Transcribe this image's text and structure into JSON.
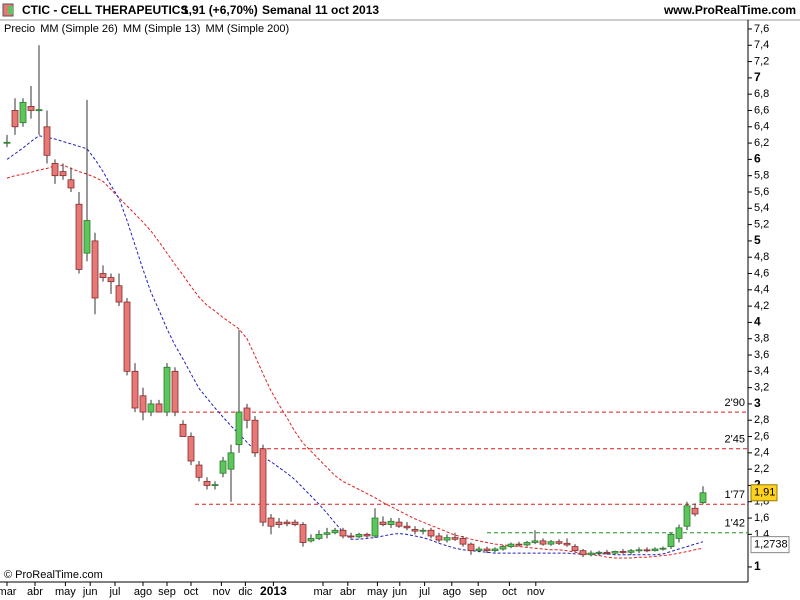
{
  "chart_data": {
    "type": "candlestick",
    "title": "CTIC - CELL THERAPEUTICS",
    "quote": "1,91 (+6,70%)",
    "period": "Semanal",
    "date": "11 oct 2013",
    "source": "www.ProRealTime.com",
    "footer": "© ProRealTime.com",
    "ylim": [
      0.84,
      7.71
    ],
    "yticks": [
      1,
      {
        "value": 1.4,
        "label": "1,4"
      },
      {
        "value": 1.6,
        "label": "1,6"
      },
      {
        "value": 1.8,
        "label": "1,8"
      },
      2,
      {
        "value": 2.2,
        "label": "2,2"
      },
      {
        "value": 2.4,
        "label": "2,4"
      },
      {
        "value": 2.6,
        "label": "2,6"
      },
      {
        "value": 2.8,
        "label": "2,8"
      },
      3,
      {
        "value": 3.2,
        "label": "3,2"
      },
      {
        "value": 3.4,
        "label": "3,4"
      },
      {
        "value": 3.6,
        "label": "3,6"
      },
      {
        "value": 3.8,
        "label": "3,8"
      },
      4,
      {
        "value": 4.2,
        "label": "4,2"
      },
      {
        "value": 4.4,
        "label": "4,4"
      },
      {
        "value": 4.6,
        "label": "4,6"
      },
      {
        "value": 4.8,
        "label": "4,8"
      },
      5,
      {
        "value": 5.2,
        "label": "5,2"
      },
      {
        "value": 5.4,
        "label": "5,4"
      },
      {
        "value": 5.6,
        "label": "5,6"
      },
      {
        "value": 5.8,
        "label": "5,8"
      },
      6,
      {
        "value": 6.2,
        "label": "6,2"
      },
      {
        "value": 6.4,
        "label": "6,4"
      },
      {
        "value": 6.6,
        "label": "6,6"
      },
      {
        "value": 6.8,
        "label": "6,8"
      },
      7,
      {
        "value": 7.2,
        "label": "7,2"
      },
      {
        "value": 7.4,
        "label": "7,4"
      },
      {
        "value": 7.6,
        "label": "7,6"
      }
    ],
    "xlim": [
      -0.875,
      92.625
    ],
    "xticks": [
      {
        "value": 0,
        "label": "mar"
      },
      {
        "value": 3.5,
        "label": "abr"
      },
      {
        "value": 7.3,
        "label": "may"
      },
      {
        "value": 10.4,
        "label": "jun"
      },
      {
        "value": 13.5,
        "label": "jul"
      },
      {
        "value": 17,
        "label": "ago"
      },
      {
        "value": 20,
        "label": "sep"
      },
      {
        "value": 23,
        "label": "oct"
      },
      {
        "value": 26.8,
        "label": "nov"
      },
      {
        "value": 29.8,
        "label": "dic"
      },
      {
        "value": 33.3,
        "label": "2013"
      },
      {
        "value": 39.5,
        "label": "mar"
      },
      {
        "value": 42.6,
        "label": "abr"
      },
      {
        "value": 46.3,
        "label": "may"
      },
      {
        "value": 49.1,
        "label": "jun"
      },
      {
        "value": 52.2,
        "label": "jul"
      },
      {
        "value": 55.6,
        "label": "ago"
      },
      {
        "value": 58.9,
        "label": "sep"
      },
      {
        "value": 62.8,
        "label": "oct"
      },
      {
        "value": 66.1,
        "label": "nov"
      }
    ],
    "series": [
      {
        "name": "Precio",
        "up_color": "#5cc65c",
        "down_color": "#e67878",
        "open": [
          6.2,
          6.6,
          6.45,
          6.65,
          6.6,
          6.4,
          5.95,
          5.85,
          5.75,
          5.45,
          4.85,
          5.0,
          4.6,
          4.55,
          4.45,
          4.25,
          3.4,
          3.1,
          2.9,
          3.0,
          2.9,
          3.4,
          2.75,
          2.6,
          2.25,
          2.05,
          2.0,
          2.15,
          2.2,
          2.5,
          2.95,
          2.8,
          2.45,
          1.6,
          1.55,
          1.55,
          1.55,
          1.52,
          1.32,
          1.35,
          1.4,
          1.42,
          1.45,
          1.38,
          1.37,
          1.4,
          1.38,
          1.55,
          1.52,
          1.55,
          1.5,
          1.46,
          1.44,
          1.45,
          1.38,
          1.33,
          1.36,
          1.35,
          1.28,
          1.2,
          1.22,
          1.2,
          1.22,
          1.25,
          1.28,
          1.27,
          1.3,
          1.32,
          1.28,
          1.31,
          1.29,
          1.25,
          1.2,
          1.15,
          1.17,
          1.18,
          1.17,
          1.19,
          1.18,
          1.2,
          1.21,
          1.2,
          1.22,
          1.25,
          1.35,
          1.5,
          1.72,
          1.79
        ],
        "high": [
          6.3,
          6.75,
          6.75,
          6.9,
          7.4,
          6.6,
          6.0,
          5.95,
          5.9,
          5.6,
          6.73,
          5.1,
          4.7,
          4.6,
          4.6,
          4.3,
          3.5,
          3.2,
          3.05,
          3.05,
          3.5,
          3.45,
          2.8,
          2.65,
          2.3,
          2.1,
          2.05,
          2.35,
          2.5,
          3.91,
          3.0,
          2.85,
          2.5,
          1.65,
          1.6,
          1.58,
          1.58,
          1.55,
          1.4,
          1.45,
          1.48,
          1.48,
          1.48,
          1.42,
          1.42,
          1.42,
          1.72,
          1.62,
          1.6,
          1.6,
          1.55,
          1.5,
          1.48,
          1.48,
          1.42,
          1.4,
          1.42,
          1.38,
          1.3,
          1.25,
          1.25,
          1.24,
          1.27,
          1.3,
          1.31,
          1.32,
          1.45,
          1.35,
          1.33,
          1.34,
          1.35,
          1.28,
          1.22,
          1.2,
          1.2,
          1.21,
          1.2,
          1.22,
          1.22,
          1.24,
          1.24,
          1.24,
          1.25,
          1.42,
          1.52,
          1.8,
          1.78,
          1.99
        ],
        "low": [
          6.15,
          6.3,
          6.4,
          6.5,
          6.3,
          5.95,
          5.7,
          5.75,
          5.6,
          4.6,
          4.75,
          4.1,
          4.5,
          4.35,
          4.2,
          3.35,
          2.9,
          2.8,
          2.85,
          2.9,
          2.85,
          2.85,
          2.6,
          2.25,
          2.05,
          1.95,
          1.95,
          2.1,
          1.8,
          2.4,
          2.7,
          2.35,
          1.5,
          1.4,
          1.48,
          1.5,
          1.5,
          1.25,
          1.3,
          1.33,
          1.35,
          1.4,
          1.35,
          1.35,
          1.35,
          1.36,
          1.36,
          1.5,
          1.48,
          1.48,
          1.45,
          1.4,
          1.4,
          1.35,
          1.3,
          1.3,
          1.32,
          1.25,
          1.15,
          1.18,
          1.17,
          1.18,
          1.2,
          1.23,
          1.25,
          1.25,
          1.28,
          1.26,
          1.26,
          1.27,
          1.25,
          1.18,
          1.12,
          1.13,
          1.14,
          1.15,
          1.15,
          1.16,
          1.15,
          1.17,
          1.18,
          1.19,
          1.2,
          1.22,
          1.3,
          1.45,
          1.62,
          1.77
        ],
        "close": [
          6.21,
          6.4,
          6.7,
          6.6,
          6.61,
          6.05,
          5.8,
          5.8,
          5.65,
          4.65,
          5.25,
          4.3,
          4.55,
          4.5,
          4.25,
          3.4,
          2.95,
          2.9,
          3.0,
          2.9,
          3.45,
          2.9,
          2.6,
          2.3,
          2.1,
          2.0,
          2.01,
          2.3,
          2.4,
          2.9,
          2.8,
          2.4,
          1.55,
          1.5,
          1.52,
          1.53,
          1.52,
          1.3,
          1.35,
          1.4,
          1.42,
          1.45,
          1.38,
          1.37,
          1.4,
          1.38,
          1.6,
          1.52,
          1.56,
          1.5,
          1.48,
          1.44,
          1.45,
          1.38,
          1.33,
          1.36,
          1.34,
          1.28,
          1.2,
          1.22,
          1.2,
          1.22,
          1.25,
          1.28,
          1.27,
          1.3,
          1.32,
          1.28,
          1.31,
          1.29,
          1.27,
          1.2,
          1.15,
          1.17,
          1.18,
          1.17,
          1.19,
          1.18,
          1.2,
          1.21,
          1.2,
          1.22,
          1.23,
          1.4,
          1.48,
          1.75,
          1.65,
          1.91
        ]
      },
      {
        "name": "MM (Simple 26)",
        "color": "#e02020",
        "values": [
          5.77,
          5.8,
          5.82,
          5.84,
          5.87,
          5.89,
          5.92,
          5.93,
          5.89,
          5.85,
          5.82,
          5.78,
          5.73,
          5.63,
          5.53,
          5.43,
          5.33,
          5.23,
          5.12,
          4.99,
          4.85,
          4.71,
          4.58,
          4.44,
          4.31,
          4.21,
          4.14,
          4.06,
          3.99,
          3.92,
          3.8,
          3.59,
          3.37,
          3.16,
          2.99,
          2.83,
          2.66,
          2.52,
          2.42,
          2.32,
          2.22,
          2.12,
          2.05,
          2.0,
          1.95,
          1.9,
          1.85,
          1.79,
          1.74,
          1.69,
          1.64,
          1.59,
          1.55,
          1.51,
          1.47,
          1.43,
          1.39,
          1.37,
          1.34,
          1.32,
          1.3,
          1.28,
          1.27,
          1.26,
          1.25,
          1.24,
          1.23,
          1.22,
          1.21,
          1.21,
          1.2,
          1.18,
          1.17,
          1.15,
          1.14,
          1.12,
          1.11,
          1.11,
          1.11,
          1.12,
          1.12,
          1.13,
          1.14,
          1.15,
          1.17,
          1.19,
          1.21,
          1.23
        ]
      },
      {
        "name": "MM (Simple 13)",
        "color": "#2020c0",
        "values": [
          6.0,
          6.07,
          6.14,
          6.22,
          6.29,
          6.27,
          6.25,
          6.22,
          6.19,
          6.16,
          6.13,
          6.0,
          5.85,
          5.68,
          5.52,
          5.25,
          4.95,
          4.65,
          4.37,
          4.15,
          3.92,
          3.72,
          3.55,
          3.37,
          3.19,
          3.07,
          2.95,
          2.84,
          2.73,
          2.63,
          2.53,
          2.43,
          2.35,
          2.29,
          2.22,
          2.15,
          2.07,
          1.97,
          1.87,
          1.77,
          1.66,
          1.54,
          1.43,
          1.34,
          1.34,
          1.35,
          1.36,
          1.38,
          1.4,
          1.41,
          1.4,
          1.38,
          1.36,
          1.33,
          1.29,
          1.26,
          1.23,
          1.21,
          1.2,
          1.19,
          1.18,
          1.17,
          1.17,
          1.17,
          1.17,
          1.17,
          1.17,
          1.17,
          1.17,
          1.17,
          1.17,
          1.16,
          1.16,
          1.16,
          1.16,
          1.16,
          1.15,
          1.15,
          1.15,
          1.15,
          1.15,
          1.15,
          1.16,
          1.19,
          1.22,
          1.25,
          1.28,
          1.31
        ]
      },
      {
        "name": "MM (Simple 200)",
        "color": "#000000"
      }
    ],
    "levels": [
      {
        "value": 2.9,
        "label": "2'90",
        "color": "#d42020"
      },
      {
        "value": 2.45,
        "label": "2'45",
        "color": "#d42020"
      },
      {
        "value": 1.77,
        "label": "1'77",
        "color": "#d42020"
      },
      {
        "value": 1.42,
        "label": "1'42",
        "color": "#209020"
      }
    ],
    "last_price": {
      "value": 1.91,
      "label": "1,91"
    },
    "ma_tag": {
      "value": 1.2738,
      "label": "1,2738"
    }
  }
}
